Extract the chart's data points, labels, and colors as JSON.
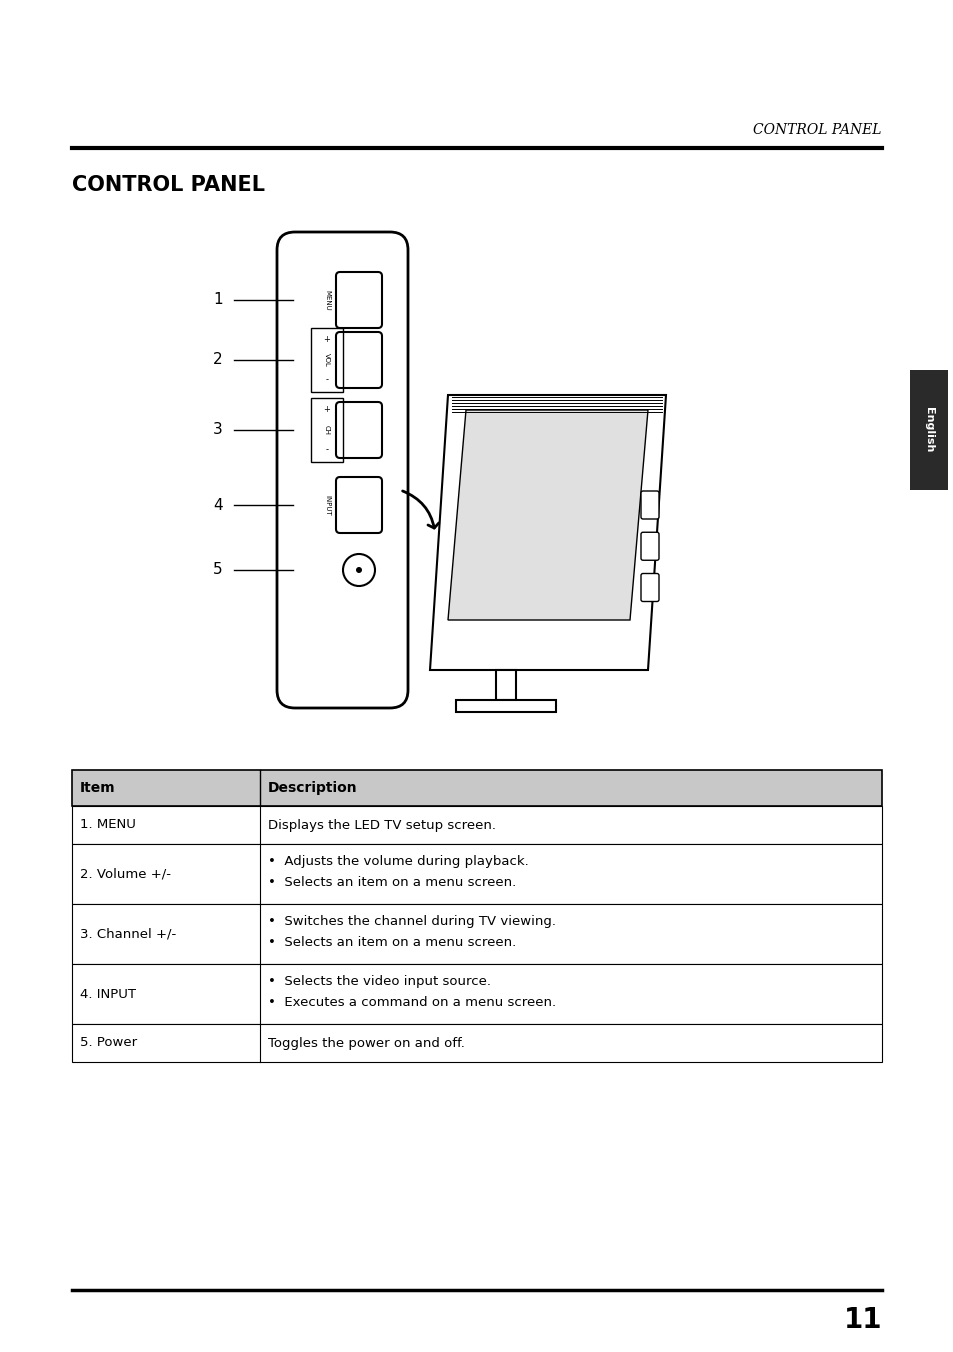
{
  "bg_color": "#ffffff",
  "header_italic_text": "CONTROL PANEL",
  "header_italic_size": 10,
  "title_text": "CONTROL PANEL",
  "title_size": 15,
  "page_number": "11",
  "english_tab_text": "English",
  "table": {
    "col1_header": "Item",
    "col2_header": "Description",
    "header_bg": "#c8c8c8",
    "header_font_size": 10,
    "cell_font_size": 9.5,
    "rows": [
      {
        "item": "1. MENU",
        "desc": [
          "Displays the LED TV setup screen."
        ],
        "two_line": false
      },
      {
        "item": "2. Volume +/-",
        "desc": [
          "•  Adjusts the volume during playback.",
          "•  Selects an item on a menu screen."
        ],
        "two_line": true
      },
      {
        "item": "3. Channel +/-",
        "desc": [
          "•  Switches the channel during TV viewing.",
          "•  Selects an item on a menu screen."
        ],
        "two_line": true
      },
      {
        "item": "4. INPUT",
        "desc": [
          "•  Selects the video input source.",
          "•  Executes a command on a menu screen."
        ],
        "two_line": true
      },
      {
        "item": "5. Power",
        "desc": [
          "Toggles the power on and off."
        ],
        "two_line": false
      }
    ]
  }
}
